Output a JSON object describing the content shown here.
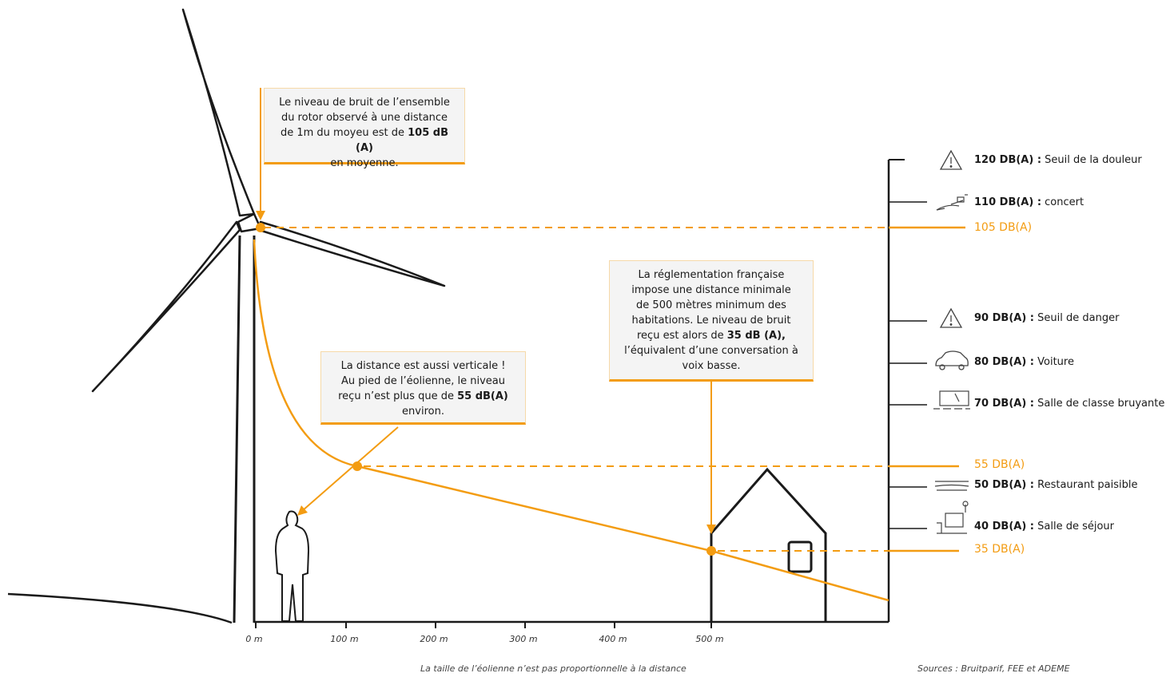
{
  "callouts": {
    "rotor": {
      "line1": "Le niveau de bruit de l’ensemble",
      "line2": "du rotor observé à une distance",
      "line3_pre": "de 1m du moyeu est de ",
      "line3_bold": "105 dB (A)",
      "line4": "en moyenne."
    },
    "vertical": {
      "line1": "La distance est aussi verticale !",
      "line2": "Au pied de l’éolienne, le niveau",
      "line3_pre": "reçu n’est plus que de ",
      "line3_bold": "55 dB(A)",
      "line4": "environ."
    },
    "regulation": {
      "line1": "La réglementation française",
      "line2": "impose une distance minimale",
      "line3": "de 500 mètres minimum des",
      "line4": "habitations. Le niveau de bruit",
      "line5_pre": "reçu est alors de ",
      "line5_bold": "35 dB (A),",
      "line6": "l’équivalent d’une conversation à",
      "line7": "voix basse."
    }
  },
  "scale": [
    {
      "level": "120 DB(A) :",
      "desc": " Seuil de la douleur",
      "icon": "warning-icon"
    },
    {
      "level": "110 DB(A) :",
      "desc": " concert",
      "icon": "guitar-icon"
    },
    {
      "level": "90 DB(A) :",
      "desc": " Seuil de danger",
      "icon": "warning-icon"
    },
    {
      "level": "80 DB(A) :",
      "desc": " Voiture",
      "icon": "car-icon"
    },
    {
      "level": "70 DB(A) :",
      "desc": " Salle de classe bruyante",
      "icon": "classroom-icon"
    },
    {
      "level": "50 DB(A) :",
      "desc": " Restaurant paisible",
      "icon": "cutlery-icon"
    },
    {
      "level": "40 DB(A) :",
      "desc": " Salle de séjour",
      "icon": "living-room-icon"
    }
  ],
  "reference_levels": [
    "105 DB(A)",
    "55 DB(A)",
    "35 DB(A)"
  ],
  "axis": {
    "ticks": [
      "0 m",
      "100 m",
      "200 m",
      "300 m",
      "400 m",
      "500 m"
    ]
  },
  "footer": {
    "note": "La taille de l’éolienne n’est pas proportionnelle à la distance",
    "sources": "Sources : Bruitparif, FEE et ADEME"
  },
  "colors": {
    "accent": "#f39c12",
    "line": "#1a1a1a",
    "box_bg": "#f4f4f4"
  }
}
